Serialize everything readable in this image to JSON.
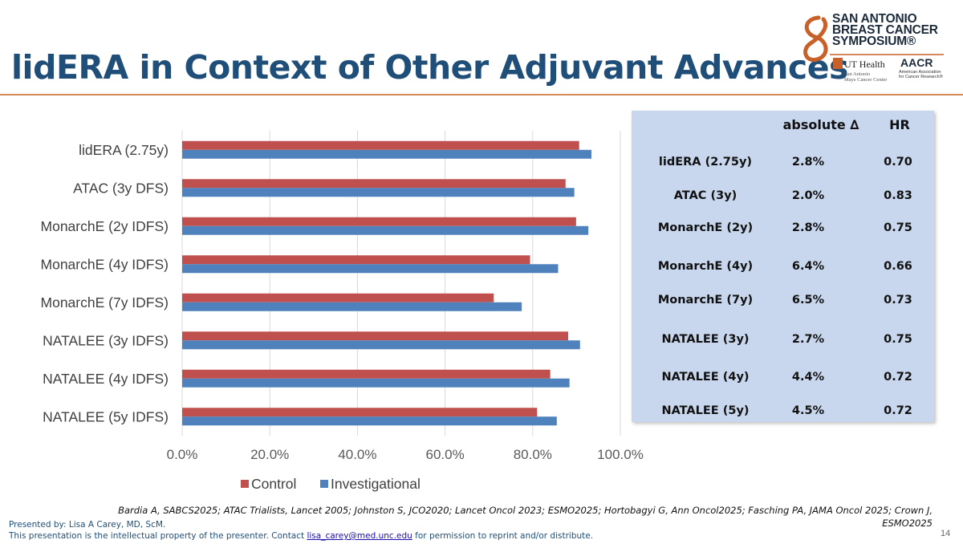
{
  "slide": {
    "title": "lidERA in Context of Other Adjuvant Advances",
    "logo": {
      "line1": "SAN ANTONIO",
      "line2": "BREAST CANCER",
      "line3": "SYMPOSIUM®",
      "uth": "UT Health",
      "uth_sub1": "San Antonio",
      "uth_sub2": "Mays Cancer Center",
      "aacr": "AACR",
      "aacr_sub1": "American Association",
      "aacr_sub2": "for Cancer Research®"
    },
    "references": "Bardia A, SABCS2025; ATAC Trialists, Lancet 2005; Johnston S, JCO2020; Lancet Oncol 2023; ESMO2025; Hortobagyi G, Ann Oncol2025; Fasching PA, JAMA Oncol 2025; Crown J, ESMO2025",
    "presented_by": "Presented by: Lisa A Carey, MD, ScM.",
    "ip_notice_pre": "This presentation is the intellectual property of the presenter. Contact ",
    "ip_email": "lisa_carey@med.unc.edu",
    "ip_notice_post": " for permission to reprint and/or distribute.",
    "page_number": "14"
  },
  "colors": {
    "control": "#c0504d",
    "investigational": "#4f81bd",
    "title": "#1f4e79",
    "table_bg": "#c8d7ee"
  },
  "chart_data": {
    "type": "bar",
    "orientation": "horizontal",
    "categories": [
      "lidERA (2.75y)",
      "ATAC (3y DFS)",
      "MonarchE (2y IDFS)",
      "MonarchE (4y IDFS)",
      "MonarchE (7y IDFS)",
      "NATALEE (3y IDFS)",
      "NATALEE (4y IDFS)",
      "NATALEE (5y IDFS)"
    ],
    "series": [
      {
        "name": "Control",
        "values": [
          0.906,
          0.875,
          0.899,
          0.794,
          0.711,
          0.881,
          0.84,
          0.81
        ]
      },
      {
        "name": "Investigational",
        "values": [
          0.934,
          0.895,
          0.927,
          0.858,
          0.775,
          0.908,
          0.884,
          0.855
        ]
      }
    ],
    "xlim": [
      0,
      1.0
    ],
    "xticks": [
      "0.0%",
      "20.0%",
      "40.0%",
      "60.0%",
      "80.0%",
      "100.0%"
    ],
    "grid": "vertical",
    "legend": "bottom"
  },
  "table": {
    "headers": [
      "",
      "absolute ∆",
      "HR"
    ],
    "rows": [
      [
        "lidERA (2.75y)",
        "2.8%",
        "0.70"
      ],
      [
        "ATAC (3y)",
        "2.0%",
        "0.83"
      ],
      [
        "MonarchE (2y)",
        "2.8%",
        "0.75"
      ],
      [
        "MonarchE (4y)",
        "6.4%",
        "0.66"
      ],
      [
        "MonarchE (7y)",
        "6.5%",
        "0.73"
      ],
      [
        "NATALEE (3y)",
        "2.7%",
        "0.75"
      ],
      [
        "NATALEE (4y)",
        "4.4%",
        "0.72"
      ],
      [
        "NATALEE (5y)",
        "4.5%",
        "0.72"
      ]
    ]
  }
}
